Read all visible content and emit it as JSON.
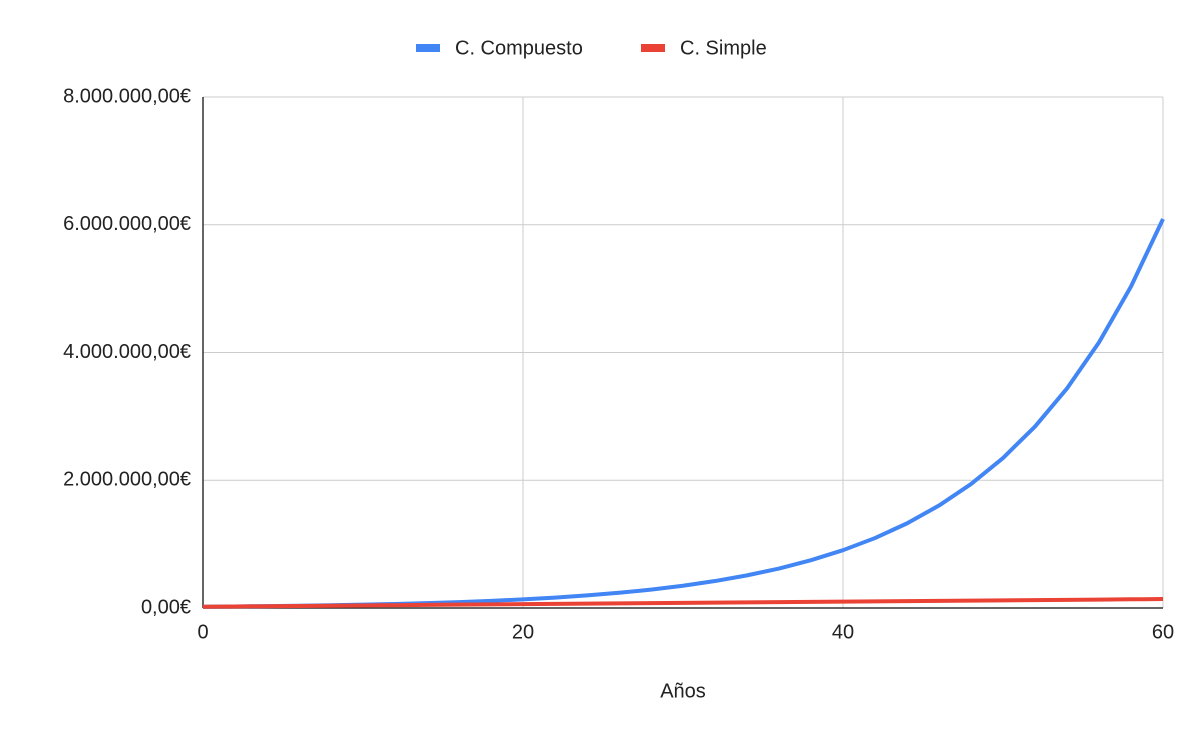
{
  "chart_data": {
    "type": "line",
    "x_label": "Años",
    "x": [
      0,
      2,
      4,
      6,
      8,
      10,
      12,
      14,
      16,
      18,
      20,
      22,
      24,
      26,
      28,
      30,
      32,
      34,
      36,
      38,
      40,
      42,
      44,
      46,
      48,
      50,
      52,
      54,
      56,
      58,
      60
    ],
    "series": [
      {
        "name": "C. Compuesto",
        "color": "#4285f4",
        "values": [
          20000,
          24000,
          29000,
          35000,
          43000,
          52000,
          63000,
          76000,
          92000,
          111000,
          135000,
          163000,
          197000,
          238000,
          288000,
          349000,
          422000,
          511000,
          618000,
          748000,
          905000,
          1095000,
          1325000,
          1604000,
          1940000,
          2348000,
          2841000,
          3437000,
          4159000,
          5033000,
          6090000
        ]
      },
      {
        "name": "C. Simple",
        "color": "#ea4335",
        "values": [
          20000,
          24000,
          28000,
          32000,
          36000,
          40000,
          44000,
          48000,
          52000,
          56000,
          60000,
          64000,
          68000,
          72000,
          76000,
          80000,
          84000,
          88000,
          92000,
          96000,
          100000,
          104000,
          108000,
          112000,
          116000,
          120000,
          124000,
          128000,
          132000,
          136000,
          140000
        ]
      }
    ],
    "xlim": [
      0,
      60
    ],
    "xticks": [
      0,
      20,
      40,
      60
    ],
    "ylim": [
      0,
      8000000
    ],
    "yticks": [
      {
        "value": 0,
        "label": "0,00€"
      },
      {
        "value": 2000000,
        "label": "2.000.000,00€"
      },
      {
        "value": 4000000,
        "label": "4.000.000,00€"
      },
      {
        "value": 6000000,
        "label": "6.000.000,00€"
      },
      {
        "value": 8000000,
        "label": "8.000.000,00€"
      }
    ],
    "grid": true,
    "legend": "top"
  }
}
